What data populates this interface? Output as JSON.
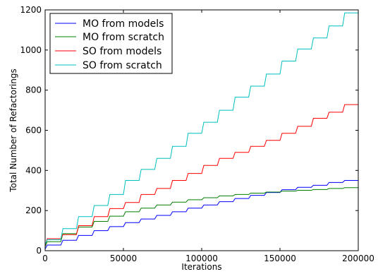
{
  "chart_data": {
    "type": "line",
    "xlabel": "Iterations",
    "ylabel": "Total Number of Refactorings",
    "xlim": [
      0,
      200000
    ],
    "ylim": [
      0,
      1200
    ],
    "xticks": [
      0,
      50000,
      100000,
      150000,
      200000
    ],
    "xtick_labels": [
      "0",
      "50000",
      "100000",
      "150000",
      "200000"
    ],
    "yticks": [
      0,
      200,
      400,
      600,
      800,
      1000,
      1200
    ],
    "ytick_labels": [
      "0",
      "200",
      "400",
      "600",
      "800",
      "1000",
      "1200"
    ],
    "grid": false,
    "legend_position": "top-left",
    "step_period": 10000,
    "series": [
      {
        "name": "MO from models",
        "color": "#0000ff",
        "x": [
          0,
          10000,
          20000,
          30000,
          40000,
          50000,
          60000,
          70000,
          80000,
          90000,
          100000,
          110000,
          120000,
          130000,
          140000,
          150000,
          160000,
          170000,
          180000,
          190000,
          200000
        ],
        "y": [
          8,
          28,
          52,
          76,
          100,
          120,
          140,
          158,
          176,
          194,
          212,
          228,
          244,
          260,
          276,
          290,
          304,
          316,
          326,
          340,
          350
        ]
      },
      {
        "name": "MO from scratch",
        "color": "#008000",
        "x": [
          0,
          10000,
          20000,
          30000,
          40000,
          50000,
          60000,
          70000,
          80000,
          90000,
          100000,
          110000,
          120000,
          130000,
          140000,
          150000,
          160000,
          170000,
          180000,
          190000,
          200000
        ],
        "y": [
          20,
          45,
          85,
          118,
          146,
          172,
          194,
          212,
          228,
          242,
          254,
          264,
          273,
          280,
          287,
          292,
          297,
          301,
          305,
          310,
          314
        ]
      },
      {
        "name": "SO from models",
        "color": "#ff0000",
        "x": [
          0,
          10000,
          20000,
          30000,
          40000,
          50000,
          60000,
          70000,
          80000,
          90000,
          100000,
          110000,
          120000,
          130000,
          140000,
          150000,
          160000,
          170000,
          180000,
          190000,
          200000
        ],
        "y": [
          25,
          60,
          80,
          125,
          170,
          210,
          240,
          280,
          310,
          350,
          385,
          425,
          460,
          490,
          520,
          550,
          585,
          620,
          660,
          690,
          728
        ]
      },
      {
        "name": "SO from scratch",
        "color": "#00bfbf",
        "x": [
          0,
          10000,
          20000,
          30000,
          40000,
          50000,
          60000,
          70000,
          80000,
          90000,
          100000,
          110000,
          120000,
          130000,
          140000,
          150000,
          160000,
          170000,
          180000,
          190000,
          200000
        ],
        "y": [
          30,
          55,
          110,
          170,
          225,
          280,
          350,
          405,
          460,
          520,
          585,
          640,
          700,
          765,
          820,
          880,
          945,
          1005,
          1060,
          1120,
          1185
        ]
      }
    ]
  }
}
